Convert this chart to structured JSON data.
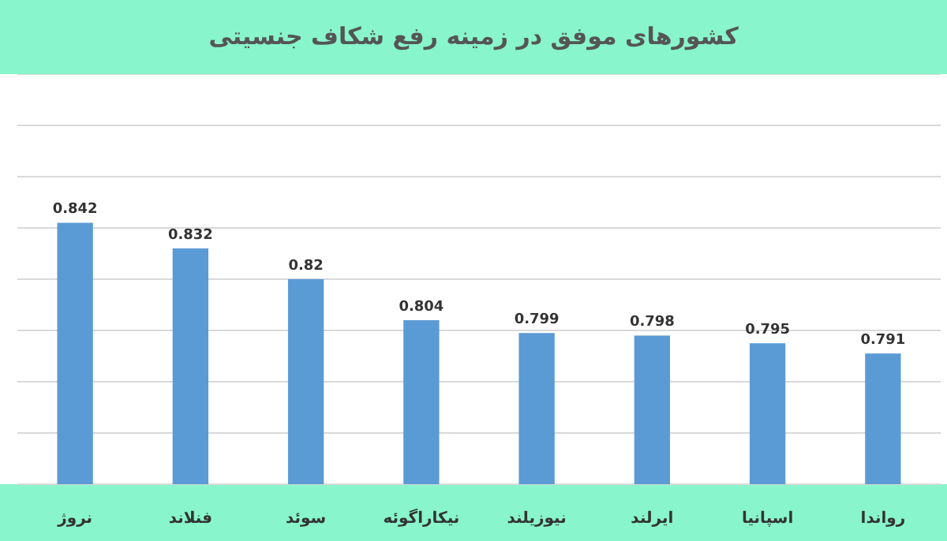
{
  "chart_data": {
    "type": "bar",
    "title": "کشورهای موفق در زمینه رفع شکاف جنسیتی",
    "categories": [
      "نروژ",
      "فنلاند",
      "سوئد",
      "نیکاراگوئه",
      "نیوزیلند",
      "ایرلند",
      "اسپانیا",
      "رواندا"
    ],
    "values": [
      0.842,
      0.832,
      0.82,
      0.804,
      0.799,
      0.798,
      0.795,
      0.791
    ],
    "color": "#5b9bd5",
    "ylim": [
      0.74,
      0.9
    ],
    "yticks": [
      0.74,
      0.76,
      0.78,
      0.8,
      0.82,
      0.84,
      0.86,
      0.88,
      0.9
    ],
    "tick_labels": "x",
    "grid": "y",
    "data_labels": true,
    "legend": false
  }
}
